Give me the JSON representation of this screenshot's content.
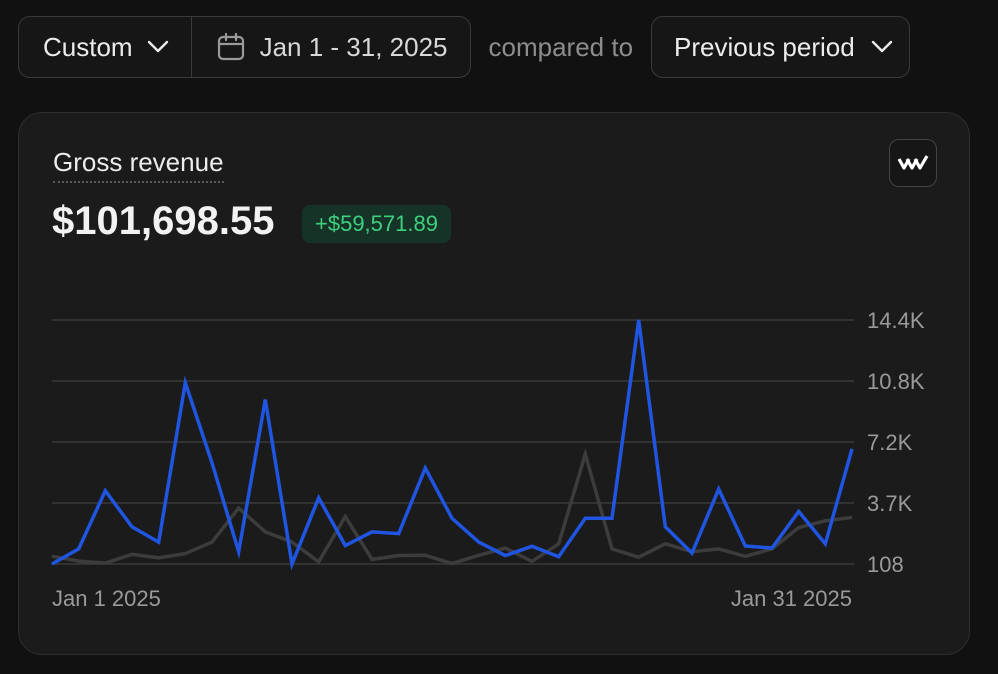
{
  "toolbar": {
    "range_preset": "Custom",
    "date_range": "Jan 1 - 31, 2025",
    "compared_text": "compared to",
    "comparison": "Previous period"
  },
  "metric": {
    "title": "Gross revenue",
    "value": "$101,698.55",
    "delta": "+$59,571.89"
  },
  "colors": {
    "current_series": "#1f55e0",
    "previous_series": "#3c3c3c",
    "delta_text": "#3fd07f",
    "delta_bg": "#153427"
  },
  "icons": [
    "chevron-down-icon",
    "calendar-icon",
    "brand-logo-icon"
  ],
  "chart_data": {
    "type": "line",
    "x_start_label": "Jan 1 2025",
    "x_end_label": "Jan 31 2025",
    "y_ticks": [
      108,
      3700,
      7200,
      10800,
      14400
    ],
    "y_tick_labels": [
      "108",
      "3.7K",
      "7.2K",
      "10.8K",
      "14.4K"
    ],
    "ylim": [
      108,
      14400
    ],
    "grid": true,
    "legend": "none",
    "series": [
      {
        "key": "current",
        "values": [
          108,
          1000,
          4400,
          2300,
          1400,
          10700,
          6000,
          830,
          9700,
          108,
          4000,
          1200,
          2000,
          1900,
          5700,
          2800,
          1400,
          600,
          1150,
          540,
          2800,
          2800,
          14400,
          2300,
          750,
          4500,
          1170,
          1050,
          3200,
          1300,
          6800
        ]
      },
      {
        "key": "previous",
        "values": [
          570,
          280,
          160,
          680,
          470,
          720,
          1400,
          3400,
          2000,
          1400,
          240,
          2900,
          380,
          610,
          620,
          130,
          620,
          1050,
          260,
          1300,
          6500,
          1000,
          510,
          1300,
          830,
          1000,
          560,
          1000,
          2250,
          2650,
          2850
        ]
      }
    ]
  }
}
